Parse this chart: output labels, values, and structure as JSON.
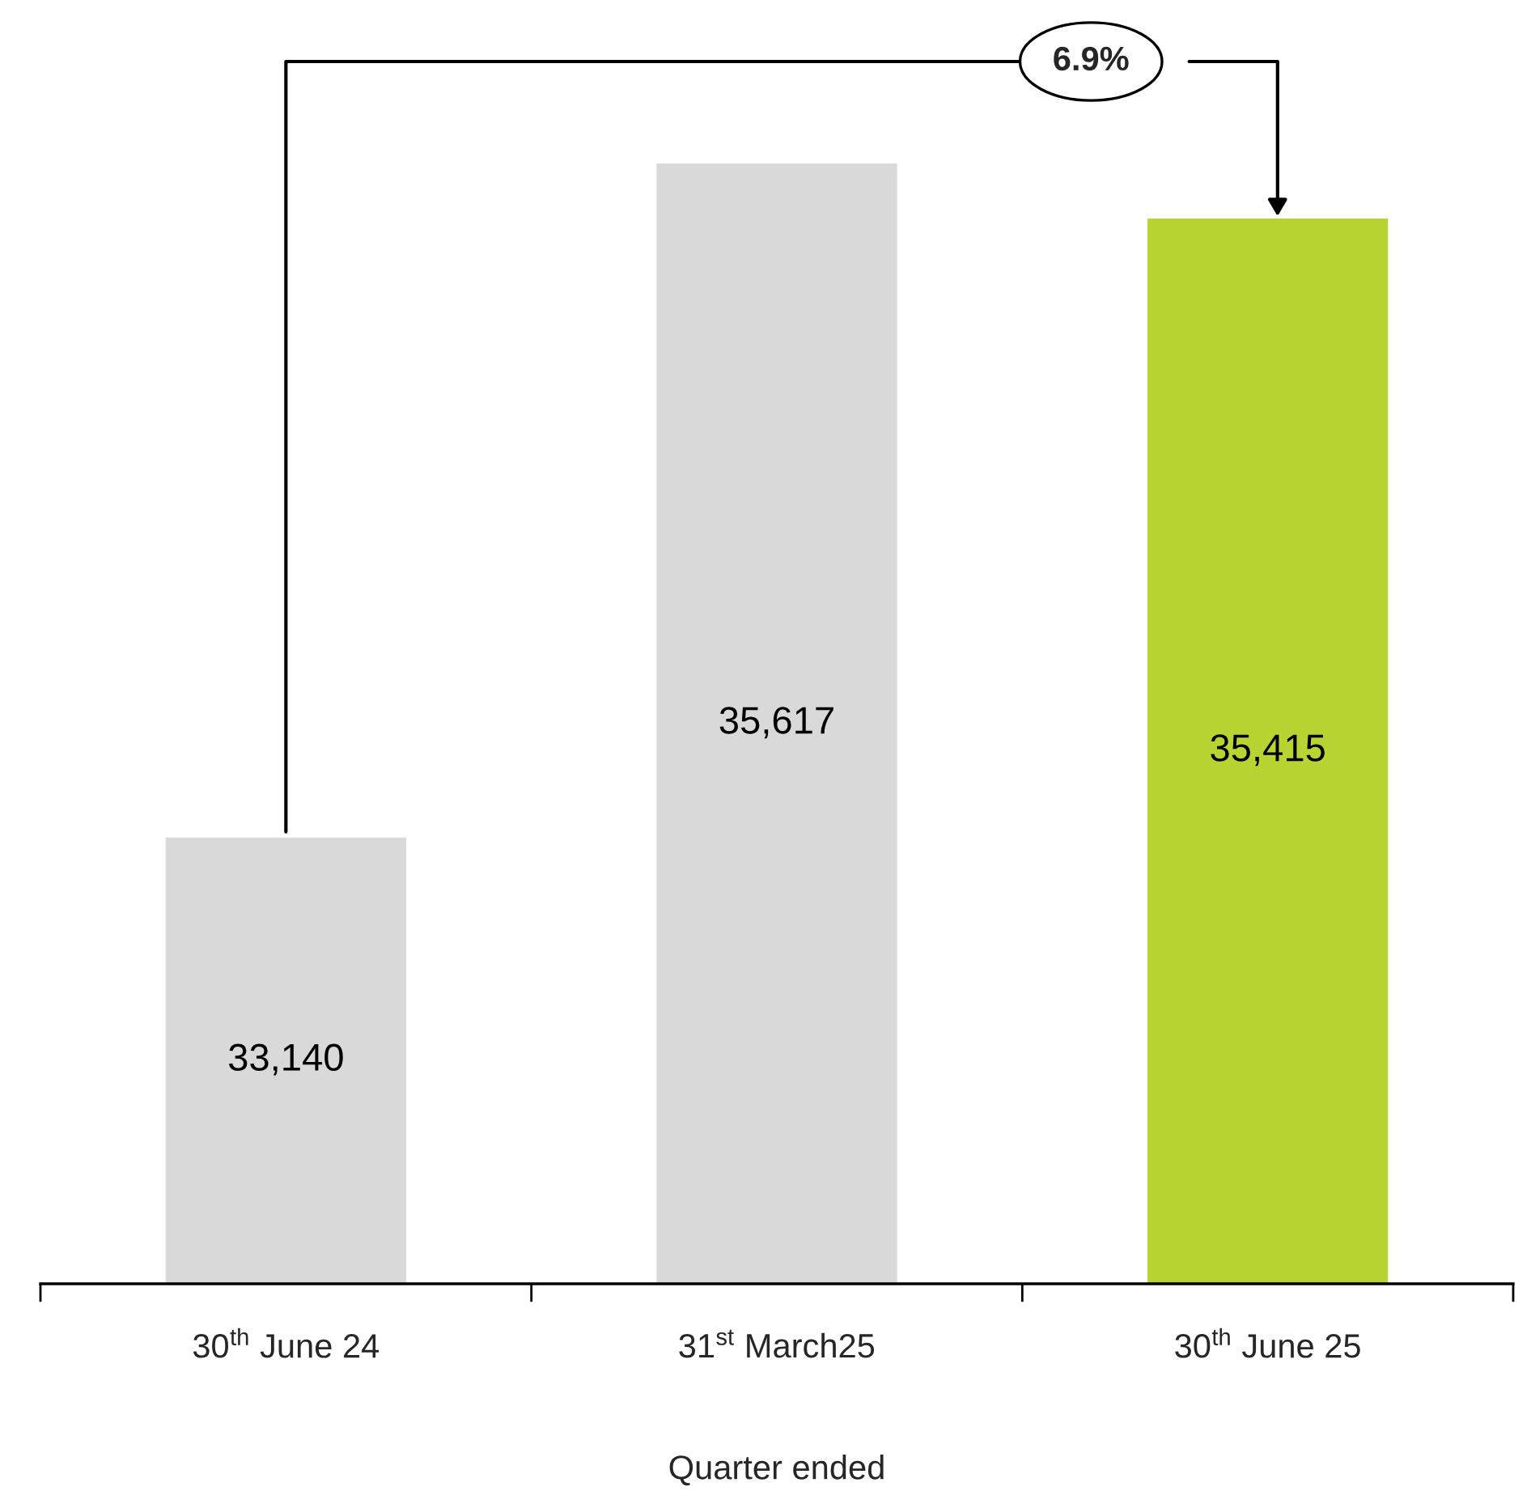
{
  "chart_data": {
    "type": "bar",
    "xlabel": "Quarter ended",
    "categories": [
      "30$^{th}$ June 24",
      "31$^{st}$ March25",
      "30$^{th}$ June 25"
    ],
    "values": [
      33140,
      35617,
      35415
    ],
    "colors": [
      "#d9d9d9",
      "#d9d9d9",
      "#b8d432"
    ],
    "value_labels": [
      "33,140",
      "35,617",
      "35,415"
    ],
    "ylim": [
      31500,
      35617
    ],
    "tick_labels": "x",
    "annotations": [
      "6.9%"
    ]
  }
}
